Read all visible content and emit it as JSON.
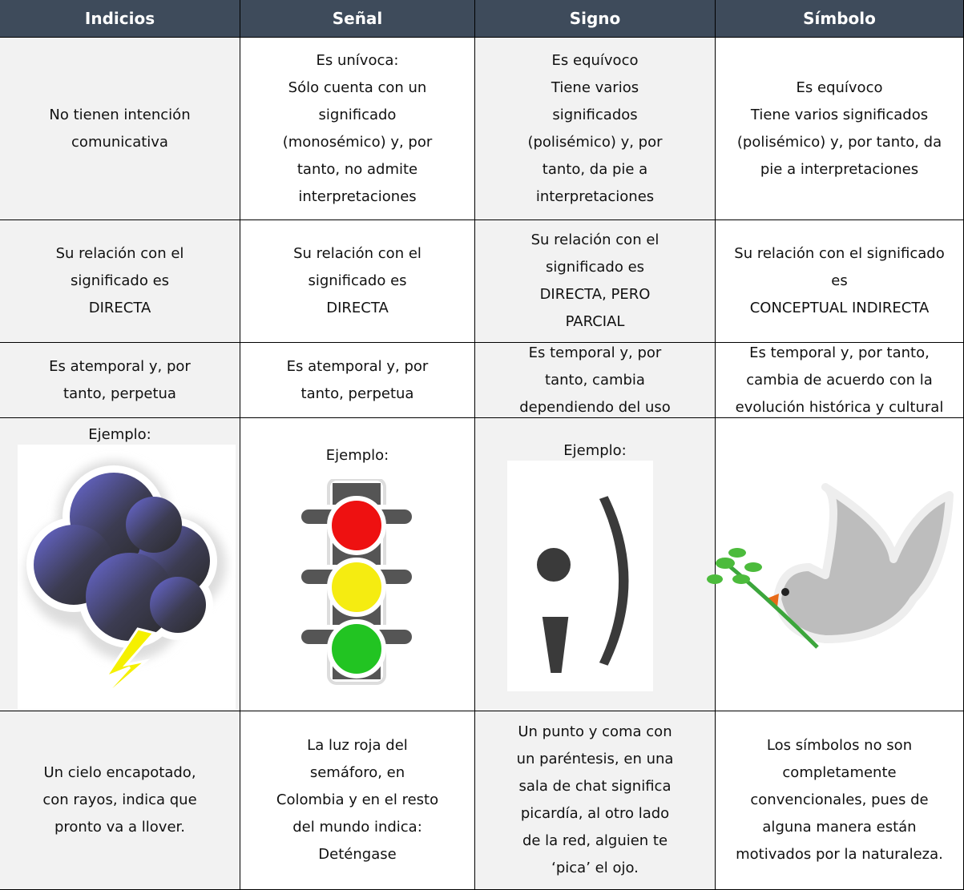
{
  "table": {
    "header": [
      "Indicios",
      "Señal",
      "Signo",
      "Símbolo"
    ],
    "rows": [
      [
        [
          "No tienen intención",
          "comunicativa"
        ],
        [
          "Es unívoca:",
          "Sólo cuenta con un",
          "significado",
          "(monosémico) y, por",
          "tanto, no admite",
          "interpretaciones"
        ],
        [
          "Es equívoco",
          "Tiene varios",
          "significados",
          "(polisémico) y, por",
          "tanto, da pie a",
          "interpretaciones"
        ],
        [
          "Es equívoco",
          "Tiene varios significados",
          "(polisémico) y, por tanto, da",
          "pie a interpretaciones"
        ]
      ],
      [
        [
          "Su relación con el",
          "significado es",
          "DIRECTA"
        ],
        [
          "Su relación con el",
          "significado es",
          "DIRECTA"
        ],
        [
          "Su relación con el",
          "significado es",
          "DIRECTA, PERO",
          "PARCIAL"
        ],
        [
          "Su relación con el significado",
          "es",
          "CONCEPTUAL INDIRECTA"
        ]
      ],
      [
        [
          "Es atemporal y, por",
          "tanto, perpetua"
        ],
        [
          "Es atemporal y, por",
          "tanto, perpetua"
        ],
        [
          "Es temporal y, por",
          "tanto, cambia",
          "dependiendo del uso"
        ],
        [
          "Es temporal y, por tanto,",
          "cambia de acuerdo con la",
          "evolución histórica y cultural"
        ]
      ],
      [
        [
          "Un cielo encapotado,",
          "con rayos, indica que",
          "pronto va a llover."
        ],
        [
          "La luz roja del",
          "semáforo, en",
          "Colombia y en el resto",
          "del mundo indica:",
          "Deténgase"
        ],
        [
          "Un punto y coma con",
          "un paréntesis, en una",
          "sala de chat significa",
          "picardía, al otro lado",
          "de la red, alguien te",
          "‘pica’ el ojo."
        ],
        [
          "Los símbolos no son",
          "completamente",
          "convencionales, pues de",
          "alguna manera están",
          "motivados por la naturaleza."
        ]
      ]
    ],
    "example_labels": [
      "Ejemplo:",
      "Ejemplo:",
      "Ejemplo:"
    ]
  }
}
